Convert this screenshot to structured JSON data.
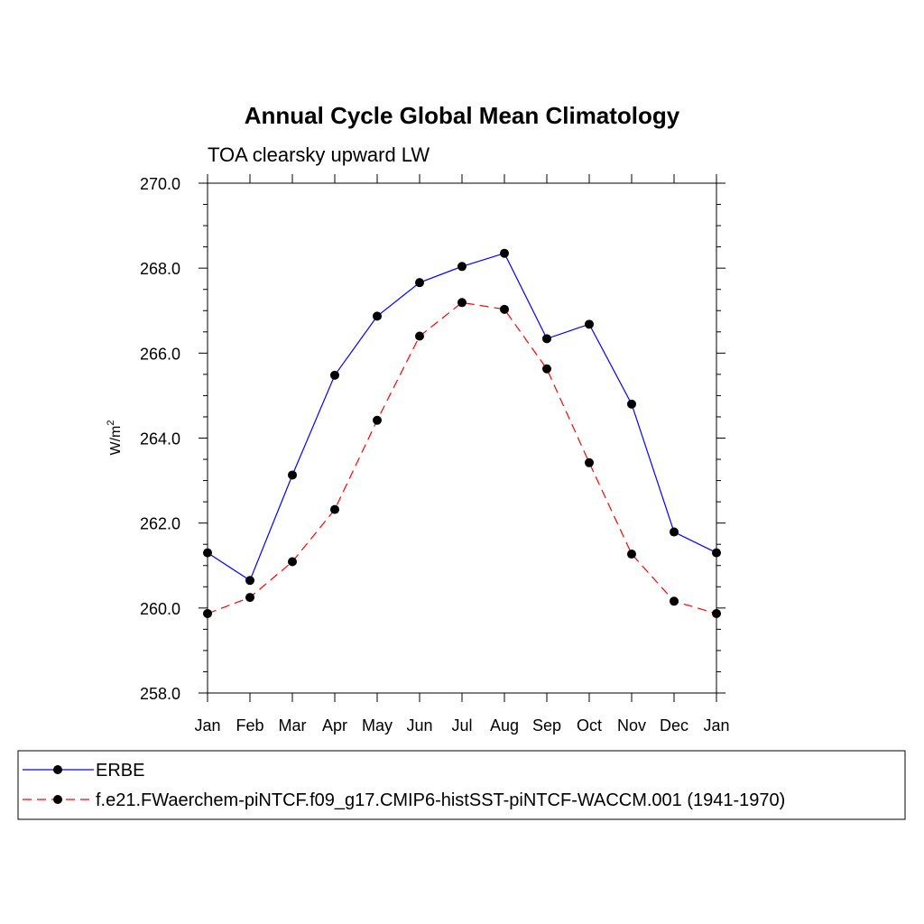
{
  "chart_data": {
    "type": "line",
    "title": "Annual Cycle Global Mean Climatology",
    "subtitle": "TOA clearsky upward LW",
    "ylabel": "W/m",
    "ylabel_sup": "2",
    "ylim": [
      258.0,
      270.0
    ],
    "yticks": [
      "258.0",
      "260.0",
      "262.0",
      "264.0",
      "266.0",
      "268.0",
      "270.0"
    ],
    "categories": [
      "Jan",
      "Feb",
      "Mar",
      "Apr",
      "May",
      "Jun",
      "Jul",
      "Aug",
      "Sep",
      "Oct",
      "Nov",
      "Dec",
      "Jan"
    ],
    "grid": false,
    "legend_position": "bottom",
    "series": [
      {
        "name": "ERBE",
        "color": "#0000ff",
        "dash": "solid",
        "marker": "filled-circle",
        "values": [
          261.3,
          260.65,
          263.13,
          265.48,
          266.87,
          267.66,
          268.04,
          268.35,
          266.34,
          266.68,
          264.8,
          261.79,
          261.3
        ]
      },
      {
        "name": "f.e21.FWaerchem-piNTCF.f09_g17.CMIP6-histSST-piNTCF-WACCM.001 (1941-1970)",
        "color": "#ff0000",
        "dash": "dashed",
        "marker": "filled-circle",
        "values": [
          259.87,
          260.25,
          261.09,
          262.32,
          264.42,
          266.4,
          267.19,
          267.03,
          265.63,
          263.42,
          261.27,
          260.16,
          259.87
        ]
      }
    ]
  }
}
